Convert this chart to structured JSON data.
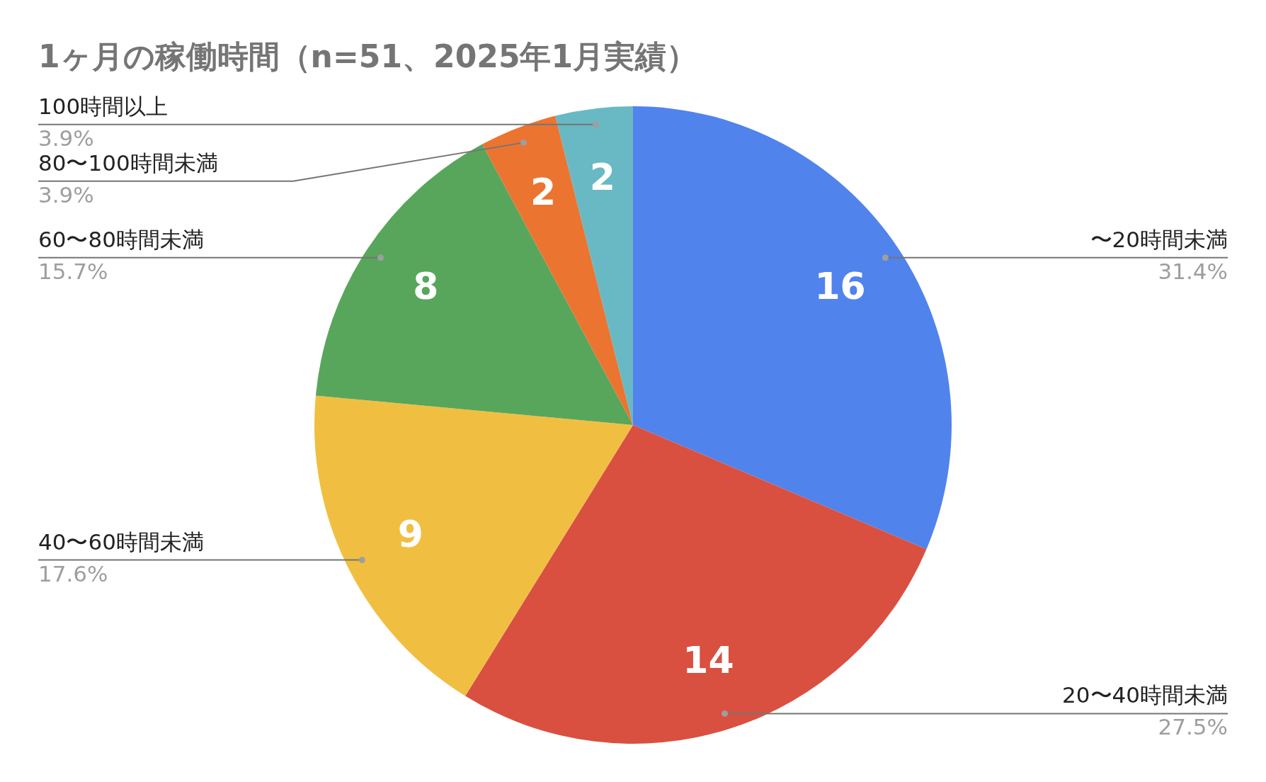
{
  "chart_data": {
    "type": "pie",
    "title": "1ヶ月の稼働時間（n=51、2025年1月実績）",
    "categories": [
      "〜20時間未満",
      "20〜40時間未満",
      "40〜60時間未満",
      "60〜80時間未満",
      "80〜100時間未満",
      "100時間以上"
    ],
    "values": [
      16,
      14,
      9,
      8,
      2,
      2
    ],
    "colors": [
      "#5083ec",
      "#d95040",
      "#f0bf42",
      "#58a65b",
      "#eb7431",
      "#68b9c3"
    ],
    "annotations": [
      "31.4%",
      "27.5%",
      "17.6%",
      "15.7%",
      "3.9%",
      "3.9%"
    ],
    "data_labels": true
  }
}
